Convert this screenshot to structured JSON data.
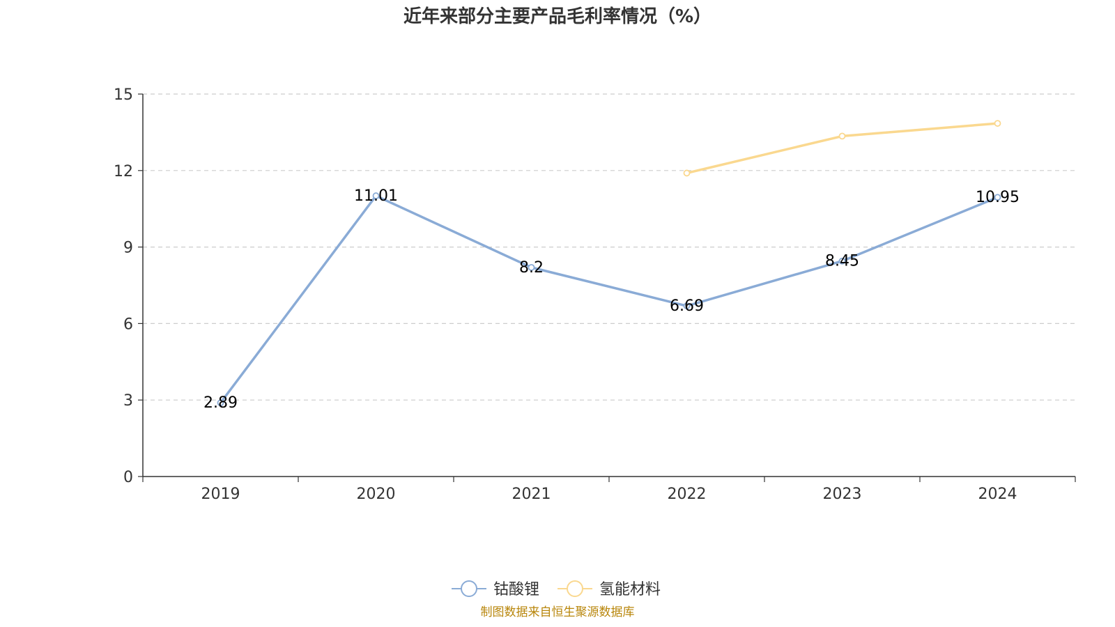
{
  "chart_data": {
    "type": "line",
    "title": "近年来部分主要产品毛利率情况（%）",
    "categories": [
      "2019",
      "2020",
      "2021",
      "2022",
      "2023",
      "2024"
    ],
    "ylim": [
      0,
      15
    ],
    "yticks": [
      "0",
      "3",
      "6",
      "9",
      "12",
      "15"
    ],
    "ytick_values": [
      0,
      3,
      6,
      9,
      12,
      15
    ],
    "grid": true,
    "legend_position": "bottom-center",
    "series": [
      {
        "name": "钴酸锂",
        "color": "#8aabd6",
        "values": [
          2.89,
          11.01,
          8.2,
          6.69,
          8.45,
          10.95
        ],
        "labels": [
          "2.89",
          "11.01",
          "8.2",
          "6.69",
          "8.45",
          "10.95"
        ],
        "show_labels": true
      },
      {
        "name": "氢能材料",
        "color": "#fad88f",
        "values": [
          null,
          null,
          null,
          11.9,
          13.35,
          13.85
        ],
        "labels": [],
        "show_labels": false
      }
    ],
    "source": "制图数据来自恒生聚源数据库"
  }
}
